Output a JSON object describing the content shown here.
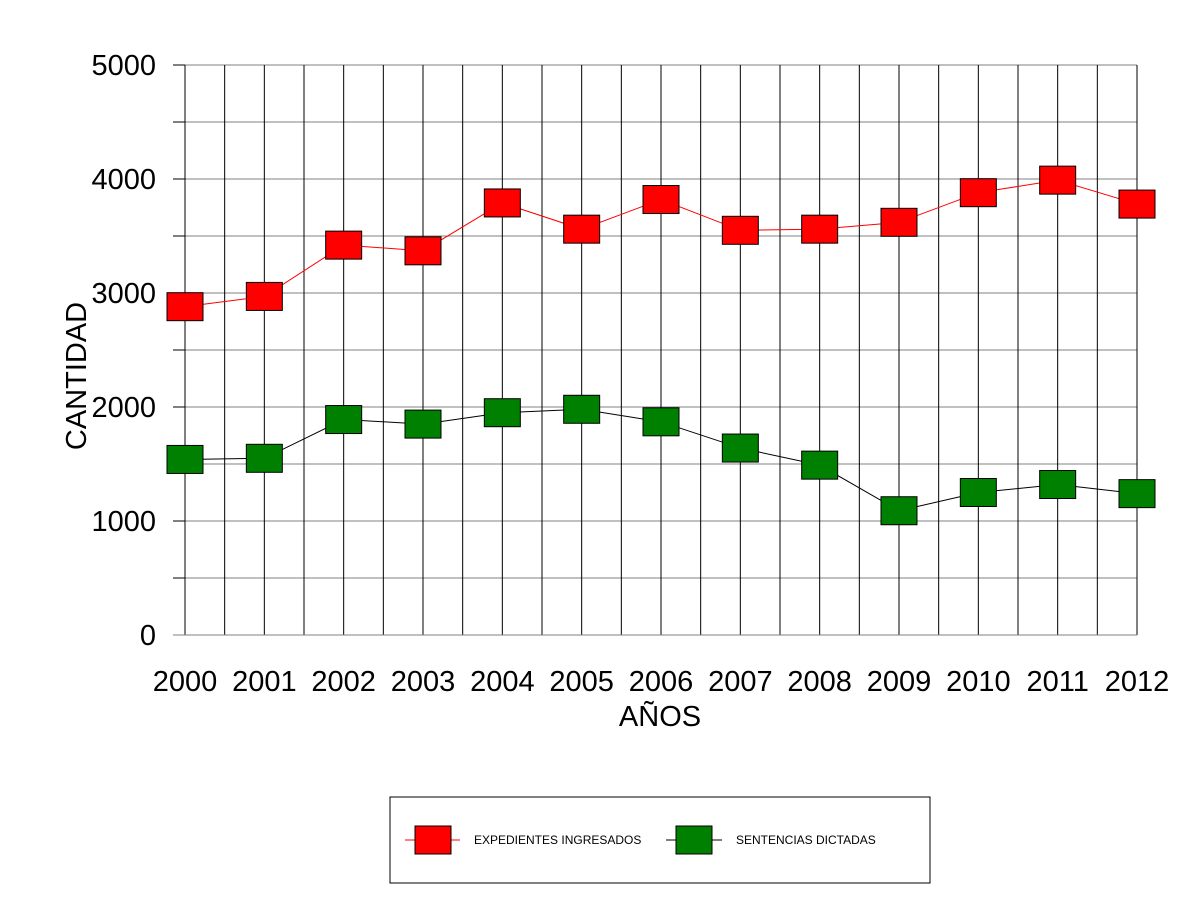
{
  "chart_data": {
    "type": "line",
    "title": "",
    "xlabel": "AÑOS",
    "ylabel": "CANTIDAD",
    "categories": [
      "2000",
      "2001",
      "2002",
      "2003",
      "2004",
      "2005",
      "2006",
      "2007",
      "2008",
      "2009",
      "2010",
      "2011",
      "2012"
    ],
    "ylim": [
      0,
      5000
    ],
    "yticks": [
      0,
      1000,
      2000,
      3000,
      4000,
      5000
    ],
    "grid": true,
    "legend_position": "bottom",
    "series": [
      {
        "name": "EXPEDIENTES INGRESADOS",
        "color": "#ff0000",
        "line_color": "#ff0000",
        "marker": "square",
        "values": [
          2880,
          2970,
          3420,
          3370,
          3790,
          3560,
          3820,
          3550,
          3560,
          3620,
          3880,
          3990,
          3780
        ]
      },
      {
        "name": "SENTENCIAS DICTADAS",
        "color": "#008000",
        "line_color": "#000000",
        "marker": "square",
        "values": [
          1540,
          1550,
          1890,
          1850,
          1950,
          1980,
          1870,
          1640,
          1490,
          1090,
          1250,
          1320,
          1240
        ]
      }
    ]
  }
}
